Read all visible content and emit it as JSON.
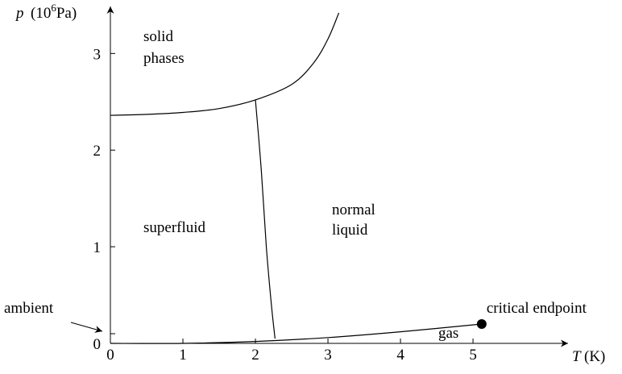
{
  "chart_data": {
    "type": "line",
    "xlabel": "T",
    "xlabel_unit": "(K)",
    "ylabel": "p",
    "ylabel_unit": [
      "(10",
      "6",
      "Pa)"
    ],
    "xlim": [
      0,
      6.31
    ],
    "ylim": [
      0,
      3.47
    ],
    "xticks": [
      0,
      1,
      2,
      3,
      4,
      5
    ],
    "yticks": [
      0,
      1,
      2,
      3
    ],
    "series": [
      {
        "color": "#000000",
        "x": [
          0,
          0.5,
          1,
          1.5,
          2,
          2.5,
          2.8,
          3.0,
          3.15
        ],
        "values": [
          2.36,
          2.37,
          2.39,
          2.43,
          2.52,
          2.68,
          2.9,
          3.15,
          3.42
        ]
      },
      {
        "color": "#000000",
        "x": [
          2,
          2.08,
          2.15,
          2.22,
          2.27
        ],
        "values": [
          2.52,
          1.8,
          1.0,
          0.4,
          0.05
        ]
      },
      {
        "color": "#000000",
        "x": [
          0,
          1,
          2,
          3,
          4,
          5.12
        ],
        "values": [
          0,
          0,
          0.02,
          0.06,
          0.12,
          0.2
        ]
      }
    ],
    "critical_point": {
      "label": "critical endpoint",
      "x": 5.12,
      "y": 0.2
    },
    "ambient": {
      "label": "ambient",
      "y": 0.1
    },
    "regions": [
      "solid",
      "phases",
      "superfluid",
      "normal",
      "liquid",
      "gas"
    ]
  }
}
